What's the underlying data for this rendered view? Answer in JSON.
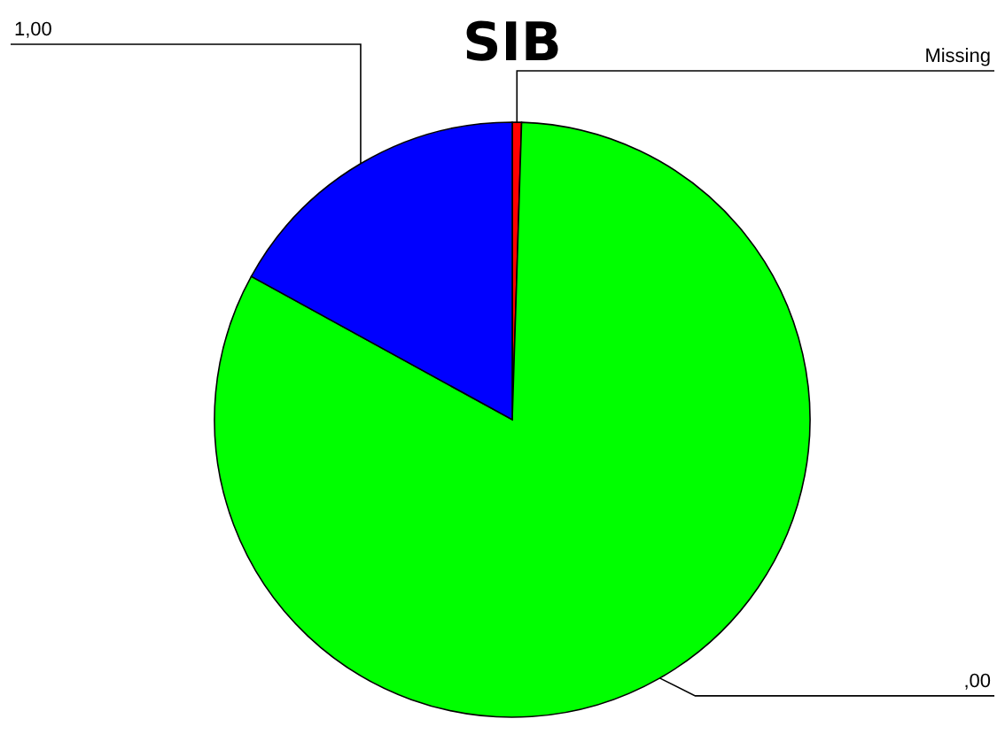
{
  "chart_data": {
    "type": "pie",
    "title": "SIB",
    "categories": [
      "Missing",
      ",00",
      "1,00"
    ],
    "values": [
      0.5,
      82.5,
      17
    ],
    "colors": [
      "#ff0000",
      "#00ff00",
      "#0000ff"
    ]
  }
}
